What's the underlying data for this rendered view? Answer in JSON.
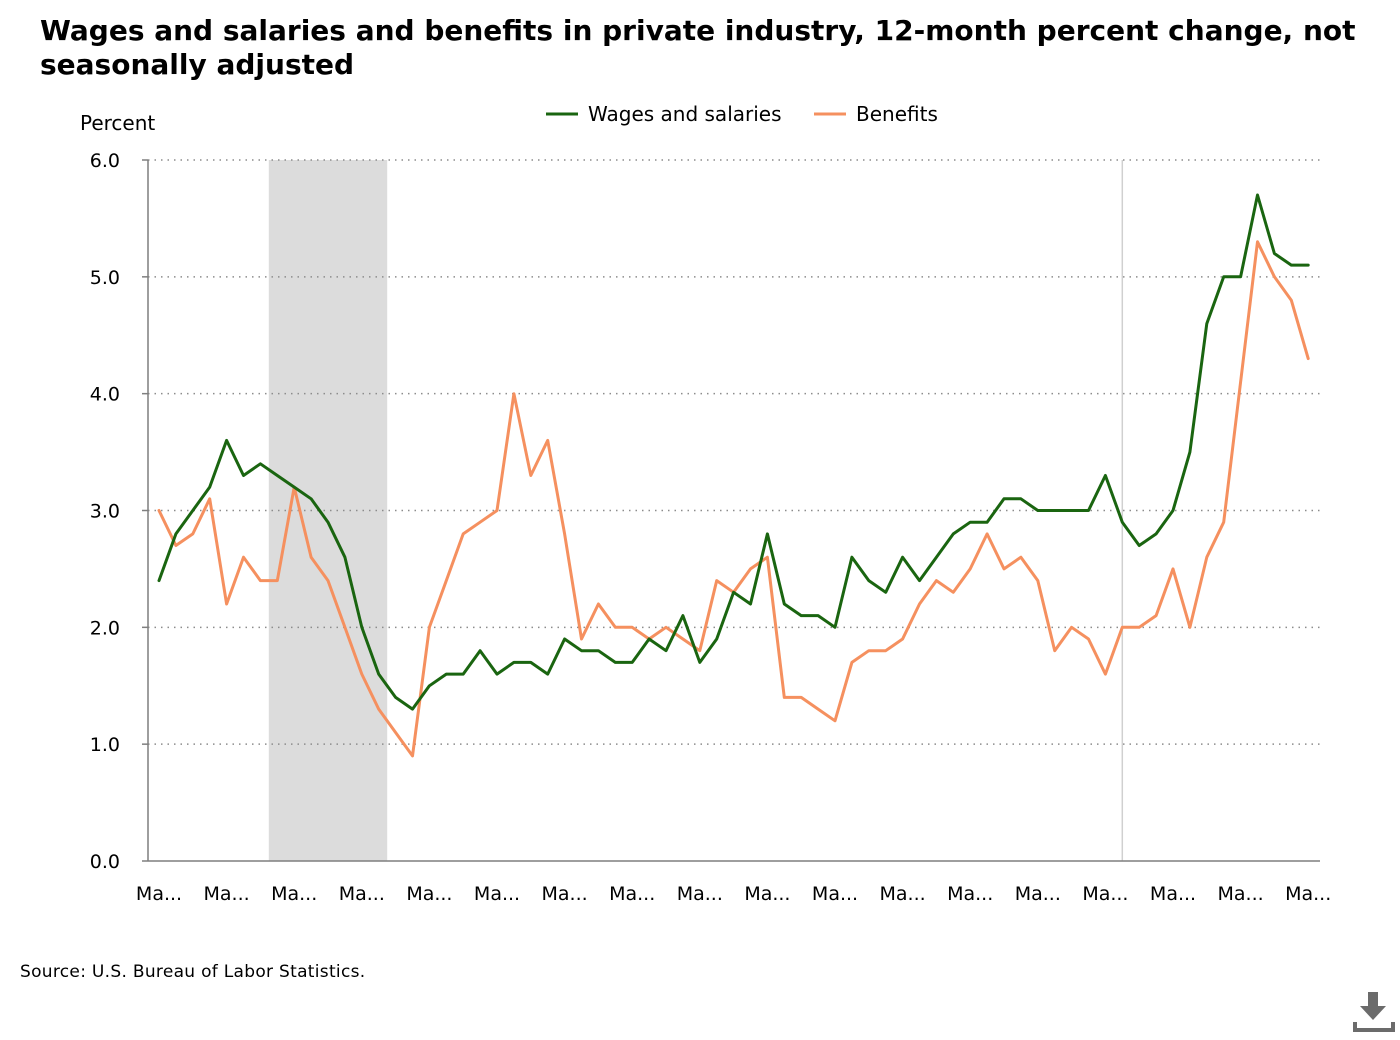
{
  "chart_data": {
    "type": "line",
    "title": "Wages and salaries and benefits in private industry, 12-month percent change, not seasonally adjusted",
    "ylabel": "Percent",
    "xlabel": "",
    "ylim": [
      0,
      6
    ],
    "yticks": [
      0,
      1,
      2,
      3,
      4,
      5,
      6
    ],
    "ytick_labels": [
      "0.0",
      "1.0",
      "2.0",
      "3.0",
      "4.0",
      "5.0",
      "6.0"
    ],
    "xtick_labels": [
      "Ma...",
      "Ma...",
      "Ma...",
      "Ma...",
      "Ma...",
      "Ma...",
      "Ma...",
      "Ma...",
      "Ma...",
      "Ma...",
      "Ma...",
      "Ma...",
      "Ma...",
      "Ma...",
      "Ma...",
      "Ma...",
      "Ma...",
      "Ma..."
    ],
    "xtick_interval": 4,
    "grid": "horizontal dotted",
    "legend_position": "top-center",
    "recession_shading": {
      "start_index": 7,
      "end_index": 13,
      "color": "#dcdcdc"
    },
    "reference_line_index": 57,
    "series": [
      {
        "name": "Wages and salaries",
        "color": "#1a6510",
        "values": [
          2.4,
          2.8,
          3.0,
          3.2,
          3.6,
          3.3,
          3.4,
          3.3,
          3.2,
          3.1,
          2.9,
          2.6,
          2.0,
          1.6,
          1.4,
          1.3,
          1.5,
          1.6,
          1.6,
          1.8,
          1.6,
          1.7,
          1.7,
          1.6,
          1.9,
          1.8,
          1.8,
          1.7,
          1.7,
          1.9,
          1.8,
          2.1,
          1.7,
          1.9,
          2.3,
          2.2,
          2.8,
          2.2,
          2.1,
          2.1,
          2.0,
          2.6,
          2.4,
          2.3,
          2.6,
          2.4,
          2.6,
          2.8,
          2.9,
          2.9,
          3.1,
          3.1,
          3.0,
          3.0,
          3.0,
          3.0,
          3.3,
          2.9,
          2.7,
          2.8,
          3.0,
          3.5,
          4.6,
          5.0,
          5.0,
          5.7,
          5.2,
          5.1,
          5.1
        ]
      },
      {
        "name": "Benefits",
        "color": "#f5905f",
        "values": [
          3.0,
          2.7,
          2.8,
          3.1,
          2.2,
          2.6,
          2.4,
          2.4,
          3.2,
          2.6,
          2.4,
          2.0,
          1.6,
          1.3,
          1.1,
          0.9,
          2.0,
          2.4,
          2.8,
          2.9,
          3.0,
          4.0,
          3.3,
          3.6,
          2.8,
          1.9,
          2.2,
          2.0,
          2.0,
          1.9,
          2.0,
          1.9,
          1.8,
          2.4,
          2.3,
          2.5,
          2.6,
          1.4,
          1.4,
          1.3,
          1.2,
          1.7,
          1.8,
          1.8,
          1.9,
          2.2,
          2.4,
          2.3,
          2.5,
          2.8,
          2.5,
          2.6,
          2.4,
          1.8,
          2.0,
          1.9,
          1.6,
          2.0,
          2.0,
          2.1,
          2.5,
          2.0,
          2.6,
          2.9,
          4.1,
          5.3,
          5.0,
          4.8,
          4.3
        ]
      }
    ]
  },
  "source": "Source: U.S. Bureau of Labor Statistics.",
  "icons": {
    "download": "download-icon"
  }
}
